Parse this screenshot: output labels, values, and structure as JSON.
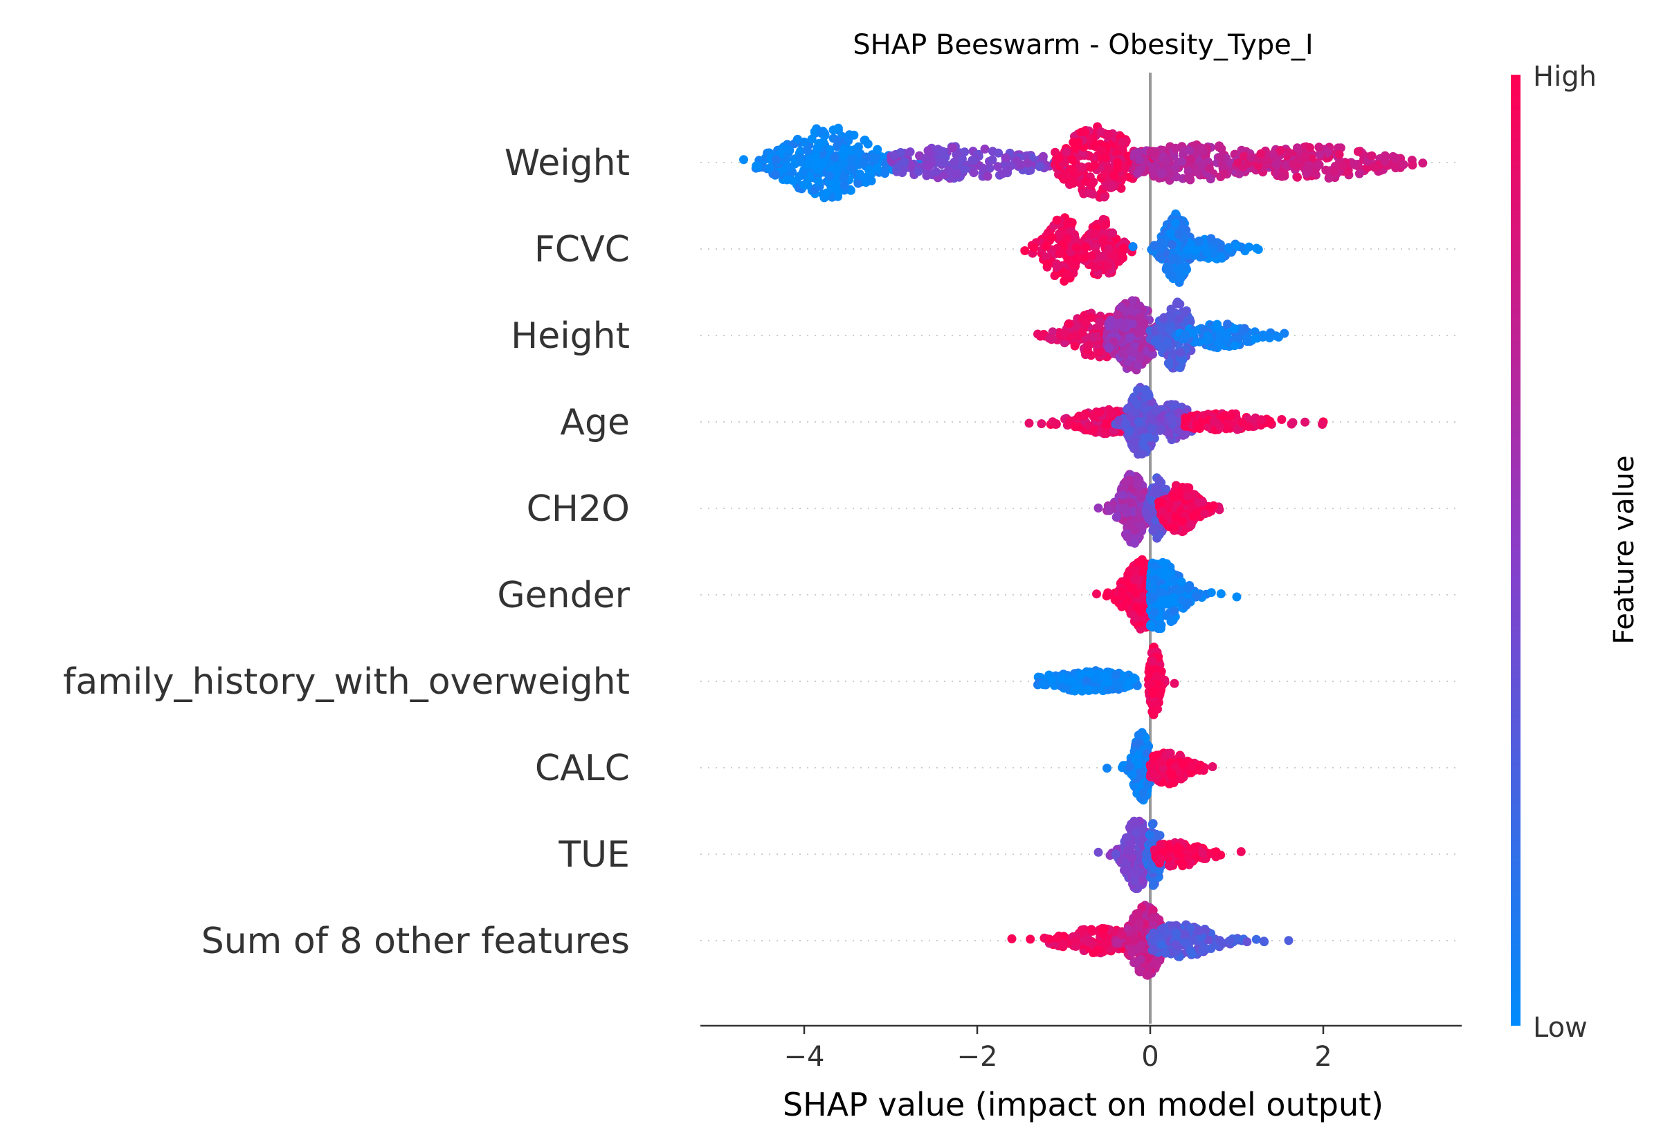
{
  "chart_data": {
    "type": "scatter",
    "subtype": "shap-beeswarm",
    "title": "SHAP Beeswarm - Obesity_Type_I",
    "xlabel": "SHAP value (impact on model output)",
    "xlim": [
      -5.2,
      3.6
    ],
    "xticks": [
      -4,
      -2,
      0,
      2
    ],
    "xtick_labels": [
      "−4",
      "−2",
      "0",
      "2"
    ],
    "zero_line": 0,
    "colorbar": {
      "label": "Feature value",
      "high_label": "High",
      "low_label": "Low",
      "low_color": "#008bfb",
      "mid_color": "#8a3dc8",
      "high_color": "#ff0052"
    },
    "features": [
      {
        "name": "Weight",
        "min": -4.7,
        "max": 3.15,
        "clusters": [
          {
            "lo": -4.7,
            "hi": -2.6,
            "center": -3.7,
            "spread": 0.45,
            "height": 1.0,
            "color": 0.03,
            "n": 300
          },
          {
            "lo": -3.0,
            "hi": -1.0,
            "center": -2.2,
            "spread": 0.7,
            "height": 0.45,
            "color": 0.45,
            "n": 170
          },
          {
            "lo": -1.1,
            "hi": 0.2,
            "center": -0.6,
            "spread": 0.35,
            "height": 1.0,
            "color": 0.92,
            "n": 260
          },
          {
            "lo": -0.2,
            "hi": 1.8,
            "center": 0.5,
            "spread": 0.6,
            "height": 0.55,
            "color": 0.7,
            "n": 220
          },
          {
            "lo": 1.0,
            "hi": 3.15,
            "center": 1.9,
            "spread": 0.7,
            "height": 0.45,
            "color": 0.8,
            "n": 190
          }
        ]
      },
      {
        "name": "FCVC",
        "min": -1.45,
        "max": 1.25,
        "clusters": [
          {
            "lo": -1.45,
            "hi": -0.85,
            "center": -1.0,
            "spread": 0.18,
            "height": 0.9,
            "color": 0.95,
            "n": 140
          },
          {
            "lo": -0.9,
            "hi": -0.2,
            "center": -0.55,
            "spread": 0.15,
            "height": 0.85,
            "color": 0.93,
            "n": 150
          },
          {
            "lo": -0.2,
            "hi": 0.5,
            "center": 0.3,
            "spread": 0.12,
            "height": 1.0,
            "color": 0.1,
            "n": 220
          },
          {
            "lo": 0.4,
            "hi": 1.25,
            "center": 0.7,
            "spread": 0.25,
            "height": 0.3,
            "color": 0.05,
            "n": 70
          }
        ]
      },
      {
        "name": "Height",
        "min": -1.3,
        "max": 1.55,
        "clusters": [
          {
            "lo": -1.3,
            "hi": -0.3,
            "center": -0.6,
            "spread": 0.3,
            "height": 0.65,
            "color": 0.88,
            "n": 180
          },
          {
            "lo": -0.5,
            "hi": 0.3,
            "center": -0.2,
            "spread": 0.2,
            "height": 1.0,
            "color": 0.6,
            "n": 220
          },
          {
            "lo": 0.0,
            "hi": 0.5,
            "center": 0.3,
            "spread": 0.15,
            "height": 0.95,
            "color": 0.3,
            "n": 150
          },
          {
            "lo": 0.3,
            "hi": 1.55,
            "center": 0.8,
            "spread": 0.3,
            "height": 0.35,
            "color": 0.08,
            "n": 110
          }
        ]
      },
      {
        "name": "Age",
        "min": -1.4,
        "max": 2.0,
        "clusters": [
          {
            "lo": -1.4,
            "hi": -0.3,
            "center": -0.5,
            "spread": 0.3,
            "height": 0.35,
            "color": 0.9,
            "n": 140
          },
          {
            "lo": -0.4,
            "hi": 0.1,
            "center": -0.1,
            "spread": 0.12,
            "height": 1.0,
            "color": 0.35,
            "n": 220
          },
          {
            "lo": 0.0,
            "hi": 0.8,
            "center": 0.25,
            "spread": 0.2,
            "height": 0.5,
            "color": 0.4,
            "n": 140
          },
          {
            "lo": 0.4,
            "hi": 2.0,
            "center": 0.8,
            "spread": 0.4,
            "height": 0.25,
            "color": 0.95,
            "n": 120
          }
        ]
      },
      {
        "name": "CH2O",
        "min": -0.6,
        "max": 0.8,
        "clusters": [
          {
            "lo": -0.6,
            "hi": 0.05,
            "center": -0.2,
            "spread": 0.12,
            "height": 1.0,
            "color": 0.6,
            "n": 200
          },
          {
            "lo": -0.05,
            "hi": 0.3,
            "center": 0.1,
            "spread": 0.08,
            "height": 0.9,
            "color": 0.35,
            "n": 110
          },
          {
            "lo": 0.1,
            "hi": 0.8,
            "center": 0.35,
            "spread": 0.18,
            "height": 0.7,
            "color": 0.95,
            "n": 160
          }
        ]
      },
      {
        "name": "Gender",
        "min": -0.62,
        "max": 1.0,
        "clusters": [
          {
            "lo": -0.62,
            "hi": 0.0,
            "center": -0.1,
            "spread": 0.16,
            "height": 1.0,
            "color": 0.97,
            "n": 220
          },
          {
            "lo": 0.0,
            "hi": 1.0,
            "center": 0.1,
            "spread": 0.22,
            "height": 0.95,
            "color": 0.04,
            "n": 230
          }
        ]
      },
      {
        "name": "family_history_with_overweight",
        "min": -1.3,
        "max": 0.28,
        "clusters": [
          {
            "lo": -1.3,
            "hi": -0.15,
            "center": -0.7,
            "spread": 0.45,
            "height": 0.3,
            "color": 0.02,
            "n": 180
          },
          {
            "lo": -0.02,
            "hi": 0.28,
            "center": 0.05,
            "spread": 0.05,
            "height": 1.0,
            "color": 0.97,
            "n": 180
          }
        ]
      },
      {
        "name": "CALC",
        "min": -0.5,
        "max": 0.72,
        "clusters": [
          {
            "lo": -0.5,
            "hi": 0.05,
            "center": -0.1,
            "spread": 0.08,
            "height": 1.0,
            "color": 0.06,
            "n": 190
          },
          {
            "lo": 0.0,
            "hi": 0.72,
            "center": 0.2,
            "spread": 0.2,
            "height": 0.45,
            "color": 0.97,
            "n": 160
          }
        ]
      },
      {
        "name": "TUE",
        "min": -0.6,
        "max": 1.05,
        "clusters": [
          {
            "lo": -0.6,
            "hi": 0.05,
            "center": -0.15,
            "spread": 0.12,
            "height": 1.0,
            "color": 0.45,
            "n": 200
          },
          {
            "lo": -0.05,
            "hi": 0.2,
            "center": 0.05,
            "spread": 0.06,
            "height": 0.9,
            "color": 0.2,
            "n": 90
          },
          {
            "lo": 0.05,
            "hi": 1.05,
            "center": 0.3,
            "spread": 0.25,
            "height": 0.35,
            "color": 0.96,
            "n": 140
          }
        ]
      },
      {
        "name": "Sum of 8 other features",
        "min": -1.6,
        "max": 1.6,
        "clusters": [
          {
            "lo": -1.6,
            "hi": -0.3,
            "center": -0.6,
            "spread": 0.35,
            "height": 0.35,
            "color": 0.93,
            "n": 160
          },
          {
            "lo": -0.4,
            "hi": 0.2,
            "center": -0.05,
            "spread": 0.15,
            "height": 1.0,
            "color": 0.75,
            "n": 240
          },
          {
            "lo": 0.0,
            "hi": 1.6,
            "center": 0.35,
            "spread": 0.35,
            "height": 0.45,
            "color": 0.3,
            "n": 180
          }
        ]
      }
    ]
  }
}
